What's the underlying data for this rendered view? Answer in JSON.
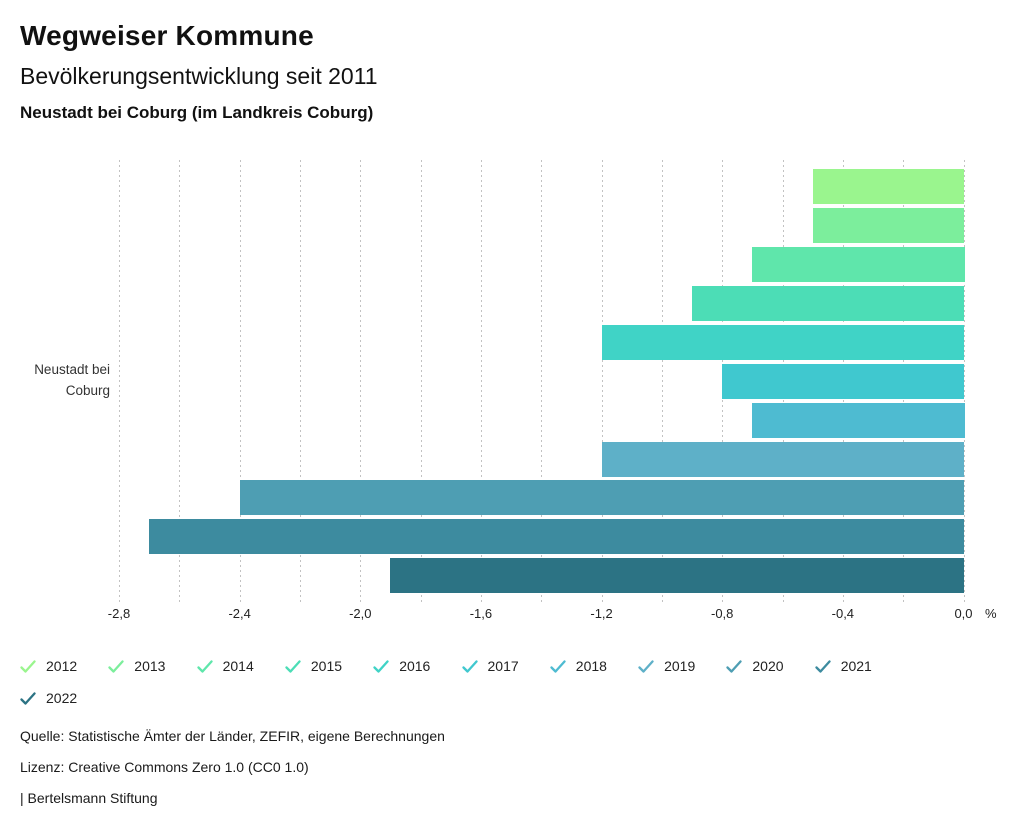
{
  "header": {
    "title": "Wegweiser Kommune",
    "subtitle": "Bevölkerungsentwicklung seit 2011",
    "region": "Neustadt bei Coburg (im Landkreis Coburg)"
  },
  "chart_data": {
    "type": "bar",
    "orientation": "horizontal",
    "title": "Bevölkerungsentwicklung seit 2011",
    "category_label": [
      "Neustadt bei",
      "Coburg"
    ],
    "unit": "%",
    "years": [
      "2012",
      "2013",
      "2014",
      "2015",
      "2016",
      "2017",
      "2018",
      "2019",
      "2020",
      "2021",
      "2022"
    ],
    "values": [
      -0.5,
      -0.5,
      -0.7,
      -0.9,
      -1.2,
      -0.8,
      -0.7,
      -1.2,
      -2.4,
      -2.7,
      -1.9
    ],
    "colors": [
      "#9af58e",
      "#7cee9c",
      "#5fe6ab",
      "#4cddb6",
      "#40d3c6",
      "#40c8cf",
      "#4ebbd1",
      "#5eb0c8",
      "#4e9eb3",
      "#3d8b9f",
      "#2c7384"
    ],
    "xlim": [
      -2.8,
      0.0
    ],
    "gridline_step": 0.2,
    "grid": true,
    "x_ticks": [
      "-2,8",
      "-2,4",
      "-2,0",
      "-1,6",
      "-1,2",
      "-0,8",
      "-0,4",
      "0,0"
    ],
    "x_tick_values": [
      -2.8,
      -2.4,
      -2.0,
      -1.6,
      -1.2,
      -0.8,
      -0.4,
      0.0
    ],
    "legend_position": "bottom"
  },
  "footer": {
    "source": "Quelle: Statistische Ämter der Länder, ZEFIR, eigene Berechnungen",
    "license": "Lizenz: Creative Commons Zero 1.0 (CC0 1.0)",
    "attribution": "| Bertelsmann Stiftung"
  }
}
